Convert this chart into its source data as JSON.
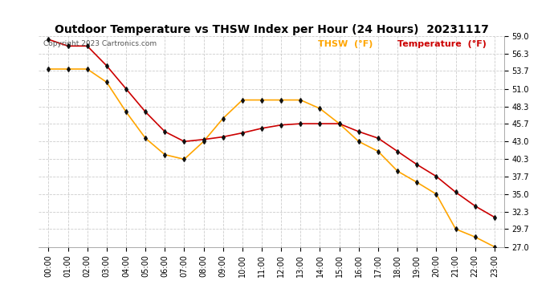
{
  "title": "Outdoor Temperature vs THSW Index per Hour (24 Hours)  20231117",
  "copyright_text": "Copyright 2023 Cartronics.com",
  "legend_thsw": "THSW  (°F)",
  "legend_temp": "Temperature  (°F)",
  "thsw_color": "#FFA500",
  "temp_color": "#CC0000",
  "marker_color": "#111111",
  "background_color": "#ffffff",
  "hours": [
    "00:00",
    "01:00",
    "02:00",
    "03:00",
    "04:00",
    "05:00",
    "06:00",
    "07:00",
    "08:00",
    "09:00",
    "10:00",
    "11:00",
    "12:00",
    "13:00",
    "14:00",
    "15:00",
    "16:00",
    "17:00",
    "18:00",
    "19:00",
    "20:00",
    "21:00",
    "22:00",
    "23:00"
  ],
  "temperature": [
    58.5,
    57.5,
    57.5,
    54.5,
    51.0,
    47.5,
    44.5,
    43.0,
    43.3,
    43.7,
    44.3,
    45.0,
    45.5,
    45.7,
    45.7,
    45.7,
    44.5,
    43.5,
    41.5,
    39.5,
    37.7,
    35.3,
    33.2,
    31.5
  ],
  "thsw": [
    54.0,
    54.0,
    54.0,
    52.0,
    47.5,
    43.5,
    41.0,
    40.3,
    43.0,
    46.5,
    49.3,
    49.3,
    49.3,
    49.3,
    48.0,
    45.7,
    43.0,
    41.5,
    38.5,
    36.8,
    35.0,
    29.7,
    28.5,
    27.0
  ],
  "ylim_min": 27.0,
  "ylim_max": 59.0,
  "yticks": [
    27.0,
    29.7,
    32.3,
    35.0,
    37.7,
    40.3,
    43.0,
    45.7,
    48.3,
    51.0,
    53.7,
    56.3,
    59.0
  ],
  "grid_color": "#cccccc",
  "title_fontsize": 10,
  "tick_fontsize": 7,
  "copyright_fontsize": 6.5,
  "legend_fontsize": 8
}
